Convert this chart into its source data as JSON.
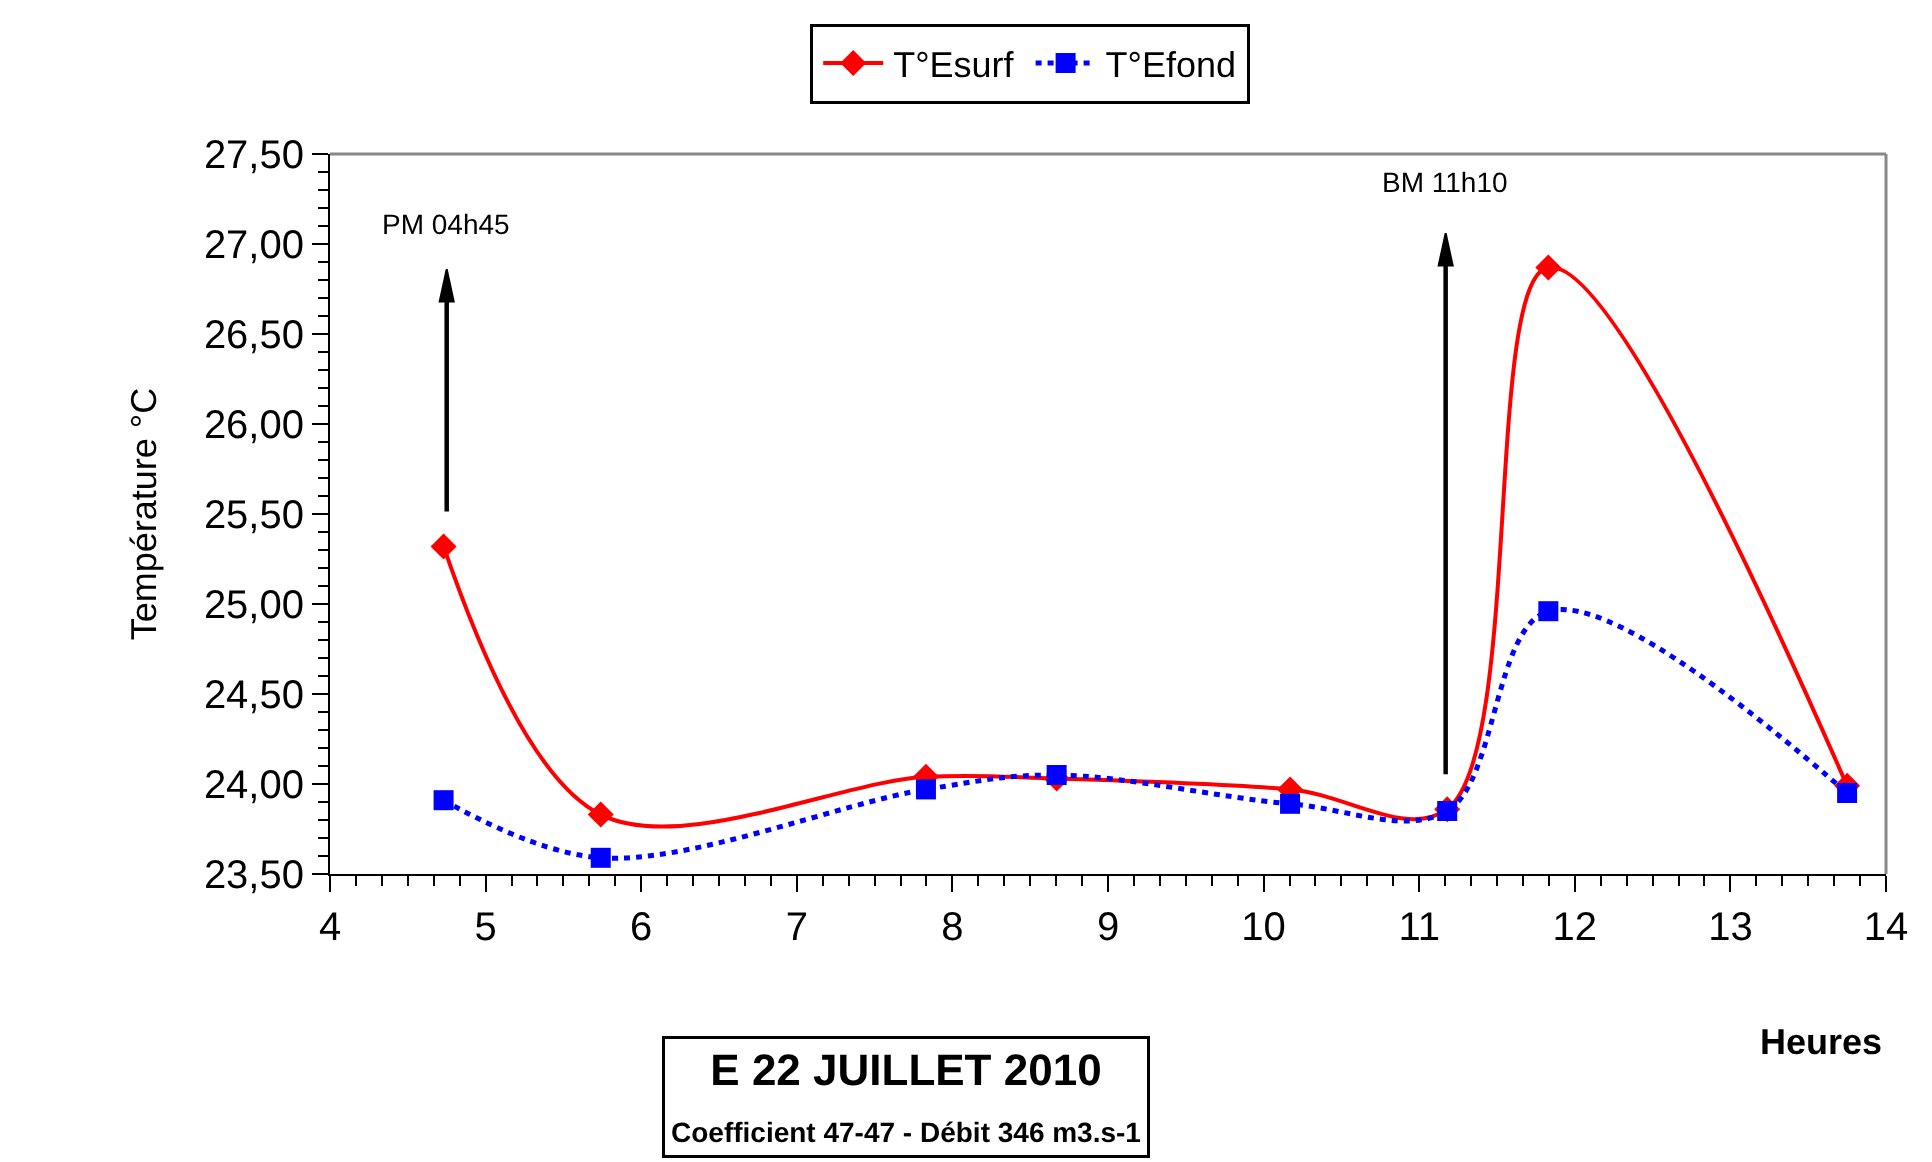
{
  "chart_data": {
    "type": "line",
    "title": "E 22 JUILLET 2010",
    "subtitle": "Coefficient 47-47 - Débit 346 m3.s-1",
    "xlabel": "Heures",
    "ylabel": "Température °C",
    "x": [
      4.73,
      5.74,
      7.83,
      8.67,
      10.17,
      11.18,
      11.83,
      13.75
    ],
    "series": [
      {
        "name": "T°Esurf",
        "color": "#ff0000",
        "marker": "diamond",
        "line_style": "solid",
        "values": [
          25.32,
          23.83,
          24.04,
          24.03,
          23.97,
          23.86,
          26.87,
          23.99
        ]
      },
      {
        "name": "T°Efond",
        "color": "#0000ff",
        "marker": "square",
        "line_style": "dotted",
        "values": [
          23.91,
          23.59,
          23.97,
          24.05,
          23.89,
          23.85,
          24.96,
          23.95
        ]
      }
    ],
    "xlim": [
      4,
      14
    ],
    "xticks": [
      4,
      5,
      6,
      7,
      8,
      9,
      10,
      11,
      12,
      13,
      14
    ],
    "ylim": [
      23.5,
      27.5
    ],
    "yticks": [
      {
        "value": 23.5,
        "label": "23,50"
      },
      {
        "value": 24,
        "label": "24,00"
      },
      {
        "value": 24.5,
        "label": "24,50"
      },
      {
        "value": 25,
        "label": "25,00"
      },
      {
        "value": 25.5,
        "label": "25,50"
      },
      {
        "value": 26,
        "label": "26,00"
      },
      {
        "value": 26.5,
        "label": "26,50"
      },
      {
        "value": 27,
        "label": "27,00"
      },
      {
        "value": 27.5,
        "label": "27,50"
      }
    ],
    "legend": "top",
    "ref_lines": [
      {
        "axis": "x",
        "value": 4.75,
        "label": "PM 04h45",
        "color": "#000000"
      },
      {
        "axis": "x",
        "value": 11.17,
        "label": "BM 11h10",
        "color": "#000000"
      }
    ]
  }
}
